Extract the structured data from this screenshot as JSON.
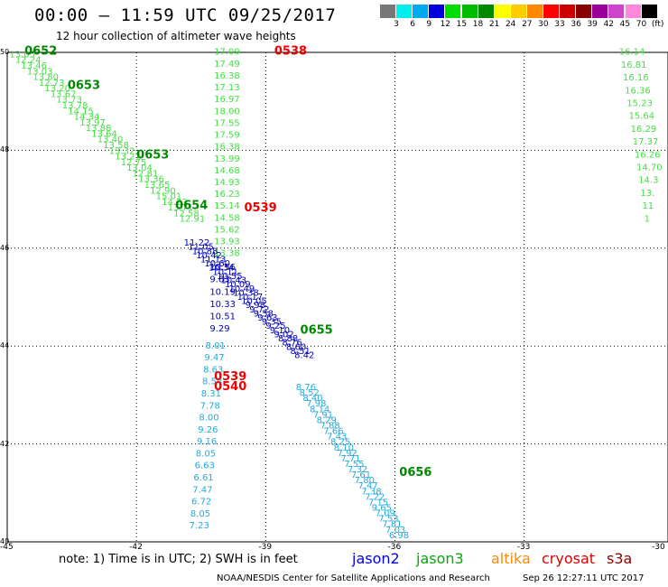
{
  "header": {
    "title": "00:00 – 11:59 UTC 09/25/2017",
    "subtitle": "12 hour collection of altimeter wave heights"
  },
  "colorbar": {
    "colors": [
      "#777777",
      "#00eeee",
      "#00aaee",
      "#0000dd",
      "#00dd00",
      "#00bb00",
      "#008800",
      "#ffff00",
      "#ffcc00",
      "#ff8800",
      "#ff0000",
      "#cc0000",
      "#880000",
      "#990099",
      "#cc44cc",
      "#ff88dd",
      "#000000"
    ],
    "labels": [
      "3",
      "6",
      "9",
      "12",
      "15",
      "18",
      "21",
      "24",
      "27",
      "30",
      "33",
      "36",
      "39",
      "42",
      "45",
      "70",
      "(ft)"
    ]
  },
  "axes": {
    "y_labels": [
      "50",
      "48",
      "46",
      "44",
      "42",
      "40"
    ],
    "x_labels": [
      "-45",
      "-42",
      "-39",
      "-36",
      "-33",
      "-30"
    ]
  },
  "map_data": {
    "type": "altimeter-swath-map",
    "lon_range": [
      -45,
      -30
    ],
    "lat_range": [
      40,
      50
    ],
    "colors": {
      "light_green": "#44dd44",
      "green": "#008800",
      "blue": "#0000bb",
      "cyan": "#22aadd",
      "red": "#ee0000",
      "navy": "#000088"
    },
    "time_labels": [
      {
        "text": "0652",
        "lon": -44.6,
        "lat": 49.95,
        "color": "green"
      },
      {
        "text": "0653",
        "lon": -43.6,
        "lat": 49.25,
        "color": "green"
      },
      {
        "text": "0653",
        "lon": -42.0,
        "lat": 47.83,
        "color": "green"
      },
      {
        "text": "0654",
        "lon": -41.1,
        "lat": 46.8,
        "color": "green"
      },
      {
        "text": "0538",
        "lon": -38.8,
        "lat": 49.95,
        "color": "red"
      },
      {
        "text": "0539",
        "lon": -39.5,
        "lat": 46.75,
        "color": "red"
      },
      {
        "text": "0655",
        "lon": -38.2,
        "lat": 44.25,
        "color": "green"
      },
      {
        "text": "0539",
        "lon": -40.2,
        "lat": 43.3,
        "color": "red"
      },
      {
        "text": "0540",
        "lon": -40.2,
        "lat": 43.1,
        "color": "red"
      },
      {
        "text": "0656",
        "lon": -35.9,
        "lat": 41.35,
        "color": "green"
      }
    ],
    "tracks": [
      {
        "name": "track-northwest",
        "color": "light_green",
        "start": [
          -44.95,
          49.9
        ],
        "step": [
          0.136,
          -0.116
        ],
        "values": [
          "13.05",
          "12.24",
          "13.46",
          "13.03",
          "13.80",
          "12.73",
          "13.20",
          "13.67",
          "13.73",
          "13.78",
          "14.15",
          "14.34",
          "13.97",
          "13.88",
          "13.64",
          "13.40",
          "13.58",
          "13.32",
          "13.27",
          "12.75",
          "13.04",
          "12.81",
          "13.36",
          "13.65",
          "12.90",
          "15.01",
          "14.23",
          "13.71",
          "12.58",
          "12.91"
        ]
      },
      {
        "name": "track-central",
        "color": "light_green",
        "start": [
          -40.2,
          49.95
        ],
        "step": [
          0,
          -0.242
        ],
        "values": [
          "17.09",
          "17.49",
          "16.38",
          "17.13",
          "16.97",
          "18.00",
          "17.55",
          "17.59",
          "16.38",
          "13.99",
          "14.68",
          "14.93",
          "16.23",
          "15.14",
          "14.58",
          "15.62",
          "13.93",
          "13.38"
        ]
      },
      {
        "name": "track-central-blue",
        "color": "blue",
        "start": [
          -40.3,
          45.55
        ],
        "step": [
          0,
          -0.25
        ],
        "values": [
          "10.56",
          "9.63",
          "10.19",
          "10.33",
          "10.51",
          "9.29"
        ]
      },
      {
        "name": "track-central-cyan",
        "color": "cyan",
        "start": [
          -40.4,
          43.95
        ],
        "step": [
          -0.025,
          -0.245
        ],
        "values": [
          "8.01",
          "9.47",
          "8.63",
          "8.54",
          "8.31",
          "7.78",
          "8.00",
          "9.26",
          "9.16",
          "8.05",
          "6.63",
          "6.61",
          "7.47",
          "6.72",
          "8.05",
          "7.23",
          "6.96"
        ]
      },
      {
        "name": "track-diagonal-blue",
        "color": "blue",
        "start": [
          -40.9,
          46.05
        ],
        "step": [
          0.095,
          -0.085
        ],
        "values": [
          "11.22",
          "11.05",
          "10.88",
          "10.42",
          "11.13",
          "10.60",
          "10.34",
          "10.11",
          "10.55",
          "10.43",
          "10.09",
          "10.49",
          "10.38",
          "10.17",
          "10.05",
          "9.98",
          "9.72",
          "9.58",
          "9.63",
          "9.35",
          "9.25",
          "9.10",
          "9.02",
          "8.88",
          "8.76",
          "8.60",
          "8.51",
          "8.42"
        ]
      },
      {
        "name": "track-diagonal-cyan",
        "color": "cyan",
        "start": [
          -38.3,
          43.1
        ],
        "step": [
          0.08,
          -0.112
        ],
        "values": [
          "8.76",
          "8.52",
          "8.40",
          "7.98",
          "8.14",
          "7.91",
          "8.29",
          "7.88",
          "7.66",
          "7.43",
          "8.25",
          "8.10",
          "7.92",
          "7.71",
          "7.55",
          "7.32",
          "7.61",
          "7.80",
          "7.47",
          "7.38",
          "7.22",
          "7.15",
          "9.65",
          "7.09",
          "7.53",
          "7.81",
          "7.03",
          "6.98"
        ]
      },
      {
        "name": "track-east",
        "color": "light_green",
        "start": [
          -30.8,
          49.95
        ],
        "step": [
          0.045,
          -0.262
        ],
        "values": [
          "16.14",
          "16.81",
          "16.16",
          "16.36",
          "15.23",
          "15.64",
          "16.29",
          "17.37",
          "16.26",
          "14.70",
          "14.3",
          "13.",
          "11",
          "1"
        ]
      }
    ]
  },
  "footer": {
    "note": "note: 1) Time is in UTC; 2) SWH is in feet",
    "satellites": [
      {
        "name": "jason2",
        "color": "#0000ee"
      },
      {
        "name": "jason3",
        "color": "#00aa00"
      },
      {
        "name": "altika",
        "color": "#ff8800"
      },
      {
        "name": "cryosat",
        "color": "#dd0000"
      },
      {
        "name": "s3a",
        "color": "#880000"
      }
    ],
    "credit": "NOAA/NESDIS Center for Satellite Applications and Research",
    "timestamp": "Sep 26 12:27:11 UTC 2017"
  }
}
